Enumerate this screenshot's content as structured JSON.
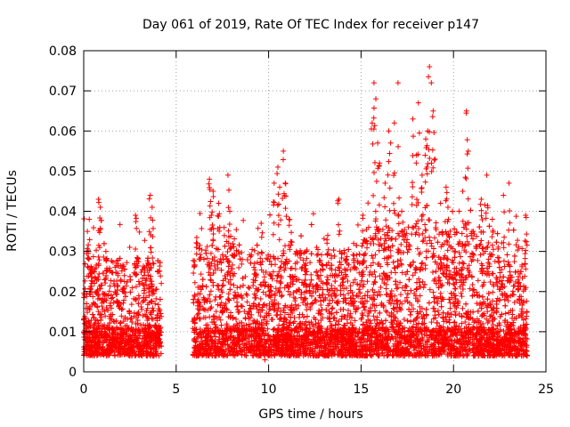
{
  "chart_data": {
    "type": "scatter",
    "title": "Day 061 of 2019, Rate Of TEC Index for receiver p147",
    "xlabel": "GPS time / hours",
    "ylabel": "ROTI / TECUs",
    "xlim": [
      0,
      25
    ],
    "ylim": [
      0,
      0.08
    ],
    "x_ticks": [
      0,
      5,
      10,
      15,
      20,
      25
    ],
    "x_tick_labels": [
      "0",
      "5",
      "10",
      "15",
      "20",
      "25"
    ],
    "y_ticks": [
      0,
      0.01,
      0.02,
      0.03,
      0.04,
      0.05,
      0.06,
      0.07,
      0.08
    ],
    "y_tick_labels": [
      "0",
      "0.01",
      "0.02",
      "0.03",
      "0.04",
      "0.05",
      "0.06",
      "0.07",
      "0.08"
    ],
    "grid": true,
    "marker": "+",
    "color": "#ff0000",
    "data_gap_hours": [
      4.2,
      5.9
    ],
    "series": [
      {
        "name": "ROTI",
        "points": [
          [
            0.1,
            0.012
          ],
          [
            0.2,
            0.035
          ],
          [
            0.3,
            0.038
          ],
          [
            0.4,
            0.025
          ],
          [
            0.8,
            0.043
          ],
          [
            0.9,
            0.041
          ],
          [
            1.2,
            0.03
          ],
          [
            1.8,
            0.027
          ],
          [
            2.2,
            0.024
          ],
          [
            2.8,
            0.039
          ],
          [
            3.3,
            0.026
          ],
          [
            3.6,
            0.044
          ],
          [
            3.7,
            0.041
          ],
          [
            3.9,
            0.011
          ],
          [
            4.0,
            0.008
          ],
          [
            6.2,
            0.018
          ],
          [
            6.8,
            0.048
          ],
          [
            6.9,
            0.039
          ],
          [
            7.0,
            0.045
          ],
          [
            7.3,
            0.042
          ],
          [
            7.5,
            0.016
          ],
          [
            7.8,
            0.049
          ],
          [
            7.9,
            0.04
          ],
          [
            8.3,
            0.021
          ],
          [
            9.2,
            0.026
          ],
          [
            9.6,
            0.037
          ],
          [
            9.8,
            0.003
          ],
          [
            10.1,
            0.024
          ],
          [
            10.3,
            0.047
          ],
          [
            10.5,
            0.051
          ],
          [
            10.6,
            0.046
          ],
          [
            10.8,
            0.055
          ],
          [
            10.9,
            0.047
          ],
          [
            11.1,
            0.038
          ],
          [
            11.5,
            0.03
          ],
          [
            12.0,
            0.027
          ],
          [
            12.6,
            0.031
          ],
          [
            13.2,
            0.034
          ],
          [
            13.8,
            0.043
          ],
          [
            14.2,
            0.028
          ],
          [
            14.6,
            0.032
          ],
          [
            15.1,
            0.039
          ],
          [
            15.6,
            0.062
          ],
          [
            15.7,
            0.072
          ],
          [
            15.8,
            0.068
          ],
          [
            15.9,
            0.057
          ],
          [
            16.0,
            0.052
          ],
          [
            16.3,
            0.047
          ],
          [
            16.5,
            0.06
          ],
          [
            16.6,
            0.057
          ],
          [
            16.8,
            0.062
          ],
          [
            17.0,
            0.072
          ],
          [
            17.2,
            0.04
          ],
          [
            17.8,
            0.063
          ],
          [
            18.0,
            0.054
          ],
          [
            18.1,
            0.067
          ],
          [
            18.3,
            0.049
          ],
          [
            18.5,
            0.058
          ],
          [
            18.6,
            0.06
          ],
          [
            18.7,
            0.076
          ],
          [
            18.8,
            0.072
          ],
          [
            18.9,
            0.065
          ],
          [
            19.0,
            0.053
          ],
          [
            19.3,
            0.042
          ],
          [
            19.6,
            0.046
          ],
          [
            19.7,
            0.041
          ],
          [
            20.1,
            0.03
          ],
          [
            20.3,
            0.04
          ],
          [
            20.5,
            0.045
          ],
          [
            20.7,
            0.065
          ],
          [
            20.8,
            0.055
          ],
          [
            21.0,
            0.035
          ],
          [
            21.5,
            0.043
          ],
          [
            21.8,
            0.049
          ],
          [
            22.1,
            0.038
          ],
          [
            22.7,
            0.044
          ],
          [
            23.0,
            0.047
          ],
          [
            23.5,
            0.025
          ],
          [
            23.9,
            0.039
          ]
        ]
      }
    ]
  }
}
